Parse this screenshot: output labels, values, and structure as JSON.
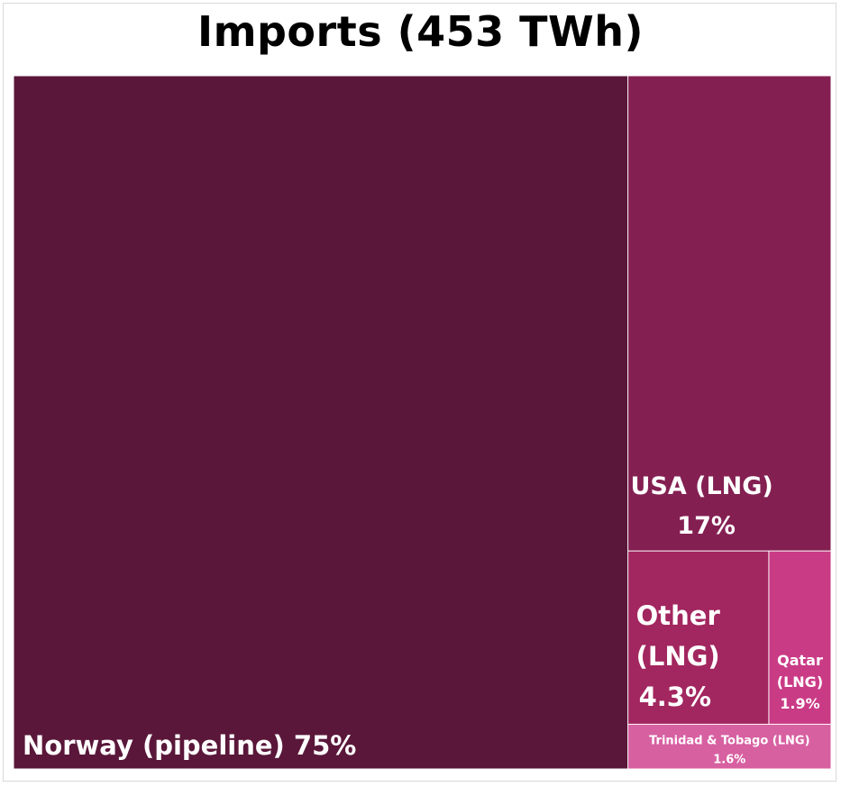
{
  "chart_data": {
    "type": "treemap",
    "title": "Imports (453 TWh)",
    "total_twh": 453,
    "unit": "%",
    "items": [
      {
        "name": "Norway (pipeline)",
        "label": "Norway (pipeline) 75%",
        "value": 75,
        "color": "#5a1739"
      },
      {
        "name": "USA (LNG)",
        "label_lines": [
          "USA (LNG)",
          "17%"
        ],
        "value": 17,
        "color": "#841f52"
      },
      {
        "name": "Other (LNG)",
        "label_lines": [
          "Other",
          "(LNG)",
          "4.3%"
        ],
        "value": 4.3,
        "color": "#a2265f"
      },
      {
        "name": "Qatar (LNG)",
        "label_lines": [
          "Qatar",
          "(LNG)",
          "1.9%"
        ],
        "value": 1.9,
        "color": "#ca3b86"
      },
      {
        "name": "Trinidad & Tobago (LNG)",
        "label_lines": [
          "Trinidad & Tobago (LNG)",
          "1.6%"
        ],
        "value": 1.6,
        "color": "#d760a1"
      }
    ]
  }
}
